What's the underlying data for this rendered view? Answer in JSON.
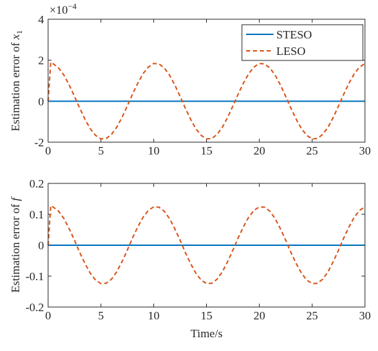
{
  "chart_data": [
    {
      "type": "line",
      "ylabel": "Estimation error of ",
      "ylabel_var": "x",
      "ylabel_sub": "1",
      "multiplier": "×10",
      "multiplier_exp": "−4",
      "xlim": [
        0,
        30
      ],
      "xticks": [
        0,
        5,
        10,
        15,
        20,
        25,
        30
      ],
      "ylim": [
        -2,
        4
      ],
      "yticks": [
        -2,
        0,
        2,
        4
      ],
      "legend": "northeast",
      "x": [
        0,
        0.25,
        0.5,
        1,
        1.5,
        2,
        2.5,
        3,
        3.5,
        4,
        4.5,
        5,
        5.5,
        6,
        6.5,
        7,
        7.5,
        8,
        8.5,
        9,
        9.5,
        10,
        10.5,
        11,
        11.5,
        12,
        12.5,
        13,
        13.5,
        14,
        14.5,
        15,
        15.5,
        16,
        16.5,
        17,
        17.5,
        18,
        18.5,
        19,
        19.5,
        20,
        20.5,
        21,
        21.5,
        22,
        22.5,
        23,
        23.5,
        24,
        24.5,
        25,
        25.5,
        26,
        26.5,
        27,
        27.5,
        28,
        28.5,
        29,
        29.5,
        30
      ],
      "series": [
        {
          "name": "STESO",
          "color": "#0072BD",
          "dash": false,
          "x": [
            0,
            30
          ],
          "values": [
            0,
            0
          ]
        },
        {
          "name": "LESO",
          "color": "#D95319",
          "dash": true,
          "values": [
            0,
            1.9,
            1.82,
            1.62,
            1.27,
            0.79,
            0.23,
            -0.35,
            -0.89,
            -1.35,
            -1.67,
            -1.84,
            -1.82,
            -1.62,
            -1.27,
            -0.79,
            -0.23,
            0.35,
            0.89,
            1.35,
            1.67,
            1.84,
            1.82,
            1.62,
            1.27,
            0.79,
            0.23,
            -0.35,
            -0.89,
            -1.35,
            -1.67,
            -1.84,
            -1.82,
            -1.62,
            -1.27,
            -0.79,
            -0.23,
            0.35,
            0.89,
            1.35,
            1.67,
            1.84,
            1.82,
            1.62,
            1.27,
            0.79,
            0.23,
            -0.35,
            -0.89,
            -1.35,
            -1.67,
            -1.84,
            -1.82,
            -1.62,
            -1.27,
            -0.79,
            -0.23,
            0.35,
            0.89,
            1.35,
            1.67,
            1.84
          ]
        }
      ]
    },
    {
      "type": "line",
      "ylabel": "Estimation error of ",
      "ylabel_var": "f",
      "xlabel": "Time/s",
      "xlim": [
        0,
        30
      ],
      "xticks": [
        0,
        5,
        10,
        15,
        20,
        25,
        30
      ],
      "ylim": [
        -0.2,
        0.2
      ],
      "yticks": [
        -0.2,
        -0.1,
        0,
        0.1,
        0.2
      ],
      "x": [
        0,
        0.25,
        0.5,
        1,
        1.5,
        2,
        2.5,
        3,
        3.5,
        4,
        4.5,
        5,
        5.5,
        6,
        6.5,
        7,
        7.5,
        8,
        8.5,
        9,
        9.5,
        10,
        10.5,
        11,
        11.5,
        12,
        12.5,
        13,
        13.5,
        14,
        14.5,
        15,
        15.5,
        16,
        16.5,
        17,
        17.5,
        18,
        18.5,
        19,
        19.5,
        20,
        20.5,
        21,
        21.5,
        22,
        22.5,
        23,
        23.5,
        24,
        24.5,
        25,
        25.5,
        26,
        26.5,
        27,
        27.5,
        28,
        28.5,
        29,
        29.5,
        30
      ],
      "series": [
        {
          "name": "STESO",
          "color": "#0072BD",
          "dash": false,
          "x": [
            0,
            30
          ],
          "values": [
            0,
            0
          ]
        },
        {
          "name": "LESO",
          "color": "#D95319",
          "dash": true,
          "values": [
            0,
            0.128,
            0.123,
            0.11,
            0.086,
            0.053,
            0.016,
            -0.024,
            -0.06,
            -0.091,
            -0.113,
            -0.124,
            -0.123,
            -0.11,
            -0.086,
            -0.053,
            -0.016,
            0.024,
            0.06,
            0.091,
            0.113,
            0.124,
            0.123,
            0.11,
            0.086,
            0.053,
            0.016,
            -0.024,
            -0.06,
            -0.091,
            -0.113,
            -0.124,
            -0.123,
            -0.11,
            -0.086,
            -0.053,
            -0.016,
            0.024,
            0.06,
            0.091,
            0.113,
            0.124,
            0.123,
            0.11,
            0.086,
            0.053,
            0.016,
            -0.024,
            -0.06,
            -0.091,
            -0.113,
            -0.124,
            -0.123,
            -0.11,
            -0.086,
            -0.053,
            -0.016,
            0.024,
            0.06,
            0.091,
            0.113,
            0.124
          ]
        }
      ]
    }
  ]
}
